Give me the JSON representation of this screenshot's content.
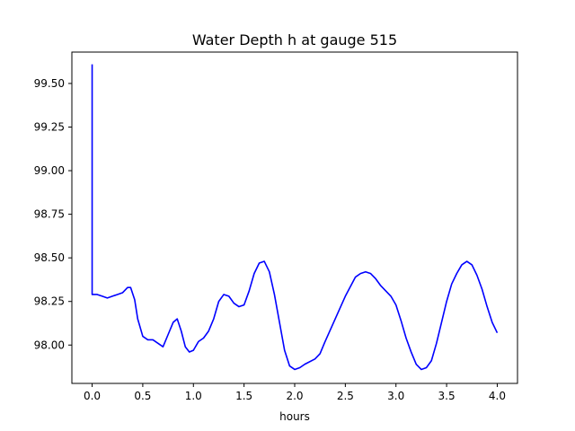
{
  "chart_data": {
    "type": "line",
    "title": "Water Depth h at gauge 515",
    "xlabel": "hours",
    "ylabel": "",
    "xlim": [
      -0.2,
      4.2
    ],
    "ylim": [
      97.78,
      99.68
    ],
    "xticks": [
      0.0,
      0.5,
      1.0,
      1.5,
      2.0,
      2.5,
      3.0,
      3.5,
      4.0
    ],
    "xtick_labels": [
      "0.0",
      "0.5",
      "1.0",
      "1.5",
      "2.0",
      "2.5",
      "3.0",
      "3.5",
      "4.0"
    ],
    "yticks": [
      98.0,
      98.25,
      98.5,
      98.75,
      99.0,
      99.25,
      99.5
    ],
    "ytick_labels": [
      "98.00",
      "98.25",
      "98.50",
      "98.75",
      "99.00",
      "99.25",
      "99.50"
    ],
    "grid": false,
    "series": [
      {
        "color": "#0000ff",
        "x": [
          0.0,
          0.0,
          0.05,
          0.1,
          0.15,
          0.2,
          0.25,
          0.3,
          0.35,
          0.38,
          0.42,
          0.45,
          0.5,
          0.55,
          0.6,
          0.65,
          0.7,
          0.75,
          0.8,
          0.84,
          0.88,
          0.92,
          0.96,
          1.0,
          1.05,
          1.1,
          1.15,
          1.2,
          1.25,
          1.3,
          1.35,
          1.4,
          1.45,
          1.5,
          1.55,
          1.6,
          1.65,
          1.7,
          1.75,
          1.8,
          1.85,
          1.9,
          1.95,
          2.0,
          2.05,
          2.1,
          2.2,
          2.25,
          2.3,
          2.4,
          2.5,
          2.6,
          2.65,
          2.7,
          2.75,
          2.8,
          2.85,
          2.9,
          2.95,
          3.0,
          3.05,
          3.1,
          3.15,
          3.2,
          3.25,
          3.3,
          3.35,
          3.4,
          3.45,
          3.5,
          3.55,
          3.6,
          3.65,
          3.7,
          3.75,
          3.8,
          3.85,
          3.9,
          3.95,
          4.0
        ],
        "y": [
          99.61,
          98.29,
          98.29,
          98.28,
          98.27,
          98.28,
          98.29,
          98.3,
          98.33,
          98.33,
          98.26,
          98.15,
          98.05,
          98.03,
          98.03,
          98.01,
          97.99,
          98.06,
          98.13,
          98.15,
          98.08,
          97.99,
          97.96,
          97.97,
          98.02,
          98.04,
          98.08,
          98.15,
          98.25,
          98.29,
          98.28,
          98.24,
          98.22,
          98.23,
          98.31,
          98.41,
          98.47,
          98.48,
          98.42,
          98.29,
          98.13,
          97.97,
          97.88,
          97.86,
          97.87,
          97.89,
          97.92,
          97.95,
          98.02,
          98.15,
          98.28,
          98.39,
          98.41,
          98.42,
          98.41,
          98.38,
          98.34,
          98.31,
          98.28,
          98.23,
          98.14,
          98.04,
          97.96,
          97.89,
          97.86,
          97.87,
          97.91,
          98.01,
          98.13,
          98.25,
          98.35,
          98.41,
          98.46,
          98.48,
          98.46,
          98.4,
          98.32,
          98.22,
          98.13,
          98.07
        ]
      }
    ]
  }
}
